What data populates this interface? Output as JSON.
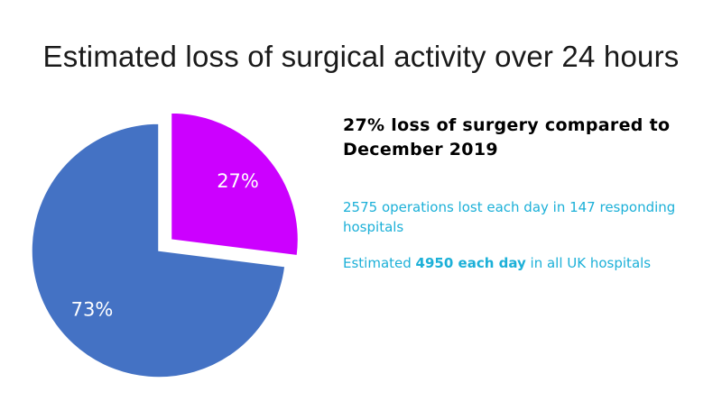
{
  "title": "Estimated loss of surgical activity over 24 hours",
  "chart_data": {
    "type": "pie",
    "title": "Estimated loss of surgical activity over 24 hours",
    "slices": [
      {
        "label": "27%",
        "value": 27,
        "color": "#cc00ff",
        "exploded": true
      },
      {
        "label": "73%",
        "value": 73,
        "color": "#4472c4",
        "exploded": false
      }
    ],
    "start_angle": "12 o'clock",
    "direction": "clockwise",
    "legend": "none"
  },
  "side": {
    "headline": "27% loss of surgery compared to December 2019",
    "operations_text": "2575 operations lost each day in 147 responding hospitals",
    "estimate_prefix": "Estimated ",
    "estimate_bold": "4950 each day",
    "estimate_suffix": " in all UK hospitals"
  },
  "colors": {
    "info_text": "#1cb0d8",
    "slice_lost": "#cc00ff",
    "slice_remaining": "#4472c4"
  }
}
